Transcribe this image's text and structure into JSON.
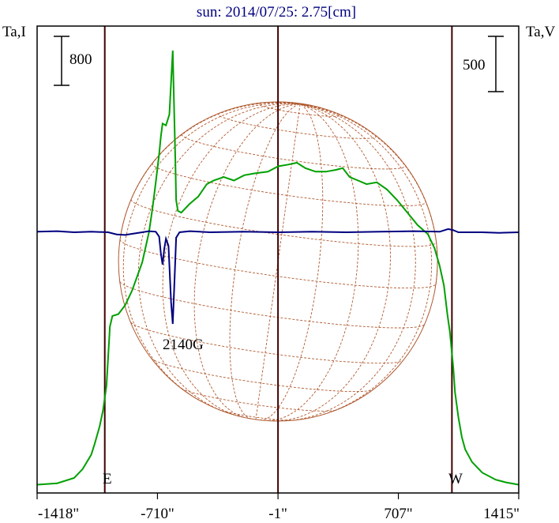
{
  "chart_data": {
    "type": "line",
    "title": "sun: 2014/07/25: 2.75[cm]",
    "left_axis_label": "Ta,I",
    "right_axis_label": "Ta,V",
    "left_scale_label": "800",
    "right_scale_label": "500",
    "x_ticks": [
      {
        "value": -1418,
        "label": "-1418\""
      },
      {
        "value": -710,
        "label": "-710\""
      },
      {
        "value": -1,
        "label": "-1\""
      },
      {
        "value": 707,
        "label": "707\""
      },
      {
        "value": 1415,
        "label": "1415\""
      }
    ],
    "xlim": [
      -1418,
      1415
    ],
    "limb_markers": [
      {
        "label": "E",
        "x": -1020
      },
      {
        "label": "W",
        "x": 1022
      }
    ],
    "center_marker_x": -1,
    "annotation": {
      "text": "2140G",
      "x": -590
    },
    "colors": {
      "intensity": "#00a000",
      "polarization": "#000080",
      "disk": "#b05a30",
      "frame": "#000000",
      "marker_lines": "#400000"
    },
    "series": [
      {
        "key": "intensity",
        "points": [
          [
            -1418,
            2
          ],
          [
            -1300,
            10
          ],
          [
            -1200,
            40
          ],
          [
            -1150,
            90
          ],
          [
            -1100,
            170
          ],
          [
            -1080,
            230
          ],
          [
            -1050,
            330
          ],
          [
            -1030,
            420
          ],
          [
            -1010,
            560
          ],
          [
            -1000,
            720
          ],
          [
            -990,
            890
          ],
          [
            -975,
            950
          ],
          [
            -940,
            960
          ],
          [
            -900,
            1010
          ],
          [
            -860,
            1090
          ],
          [
            -800,
            1250
          ],
          [
            -760,
            1420
          ],
          [
            -740,
            1550
          ],
          [
            -720,
            1700
          ],
          [
            -700,
            1860
          ],
          [
            -690,
            1960
          ],
          [
            -680,
            2030
          ],
          [
            -660,
            2020
          ],
          [
            -640,
            2080
          ],
          [
            -620,
            2440
          ],
          [
            -605,
            1820
          ],
          [
            -600,
            1600
          ],
          [
            -590,
            1540
          ],
          [
            -570,
            1530
          ],
          [
            -520,
            1580
          ],
          [
            -470,
            1620
          ],
          [
            -420,
            1690
          ],
          [
            -380,
            1710
          ],
          [
            -320,
            1730
          ],
          [
            -260,
            1710
          ],
          [
            -200,
            1740
          ],
          [
            -140,
            1750
          ],
          [
            -60,
            1760
          ],
          [
            0,
            1790
          ],
          [
            60,
            1800
          ],
          [
            110,
            1810
          ],
          [
            160,
            1780
          ],
          [
            220,
            1760
          ],
          [
            280,
            1760
          ],
          [
            340,
            1770
          ],
          [
            380,
            1780
          ],
          [
            420,
            1730
          ],
          [
            470,
            1710
          ],
          [
            520,
            1690
          ],
          [
            580,
            1700
          ],
          [
            640,
            1660
          ],
          [
            700,
            1600
          ],
          [
            760,
            1530
          ],
          [
            820,
            1460
          ],
          [
            880,
            1410
          ],
          [
            920,
            1330
          ],
          [
            950,
            1230
          ],
          [
            975,
            1120
          ],
          [
            995,
            960
          ],
          [
            1010,
            860
          ],
          [
            1030,
            660
          ],
          [
            1040,
            520
          ],
          [
            1060,
            380
          ],
          [
            1080,
            270
          ],
          [
            1100,
            200
          ],
          [
            1140,
            130
          ],
          [
            1200,
            70
          ],
          [
            1280,
            30
          ],
          [
            1340,
            15
          ],
          [
            1415,
            2
          ]
        ]
      },
      {
        "key": "polarization",
        "points": [
          [
            -1418,
            1
          ],
          [
            -1300,
            2
          ],
          [
            -1200,
            0
          ],
          [
            -1100,
            1
          ],
          [
            -1000,
            0
          ],
          [
            -950,
            -4
          ],
          [
            -900,
            -5
          ],
          [
            -860,
            -3
          ],
          [
            -800,
            0
          ],
          [
            -760,
            2
          ],
          [
            -720,
            1
          ],
          [
            -700,
            -8
          ],
          [
            -690,
            -40
          ],
          [
            -680,
            -60
          ],
          [
            -670,
            -30
          ],
          [
            -660,
            -12
          ],
          [
            -645,
            -25
          ],
          [
            -630,
            -130
          ],
          [
            -620,
            -170
          ],
          [
            -610,
            -90
          ],
          [
            -600,
            -10
          ],
          [
            -580,
            0
          ],
          [
            -520,
            2
          ],
          [
            -400,
            0
          ],
          [
            -200,
            1
          ],
          [
            0,
            0
          ],
          [
            200,
            1
          ],
          [
            400,
            0
          ],
          [
            600,
            1
          ],
          [
            800,
            2
          ],
          [
            950,
            1
          ],
          [
            1000,
            6
          ],
          [
            1030,
            4
          ],
          [
            1060,
            0
          ],
          [
            1200,
            0
          ],
          [
            1300,
            -1
          ],
          [
            1415,
            0
          ]
        ]
      }
    ]
  }
}
